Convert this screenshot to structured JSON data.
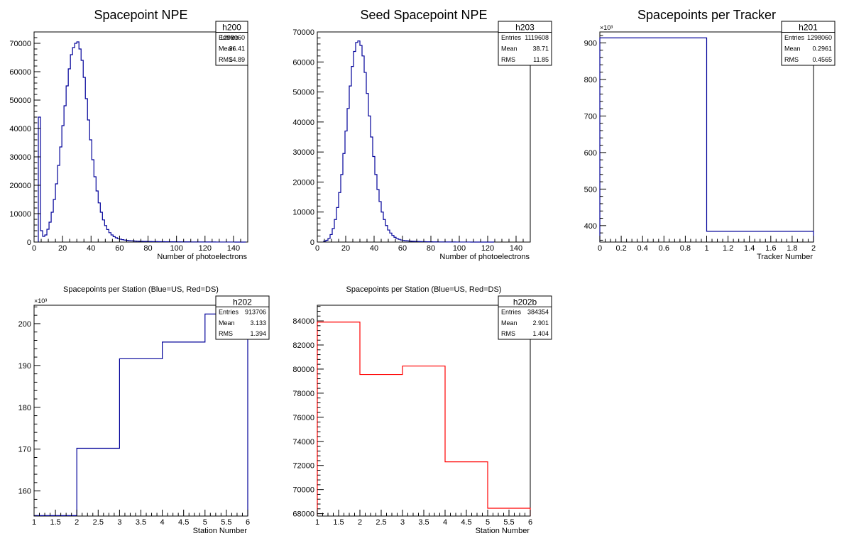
{
  "chart_data": [
    {
      "type": "histogram",
      "title": "Spacepoint NPE",
      "xlabel": "Number of photoelectrons",
      "ylabel": "",
      "xlim": [
        0,
        150
      ],
      "ylim": [
        0,
        74000
      ],
      "xticks": [
        0,
        20,
        40,
        60,
        80,
        100,
        120,
        140
      ],
      "yticks": [
        0,
        10000,
        20000,
        30000,
        40000,
        50000,
        60000,
        70000
      ],
      "color": "#000099",
      "stats": {
        "name": "h200",
        "rows": [
          [
            "Entries",
            "1298060"
          ],
          [
            "Mean",
            "36.41"
          ],
          [
            "RMS",
            "14.89"
          ]
        ]
      },
      "bin_edges_start": 3,
      "bin_width": 1.5,
      "values": [
        44000,
        4000,
        2000,
        2500,
        4500,
        7000,
        10500,
        15000,
        20500,
        27000,
        33500,
        41000,
        48000,
        55000,
        61000,
        66000,
        68500,
        70000,
        70500,
        68000,
        64000,
        58000,
        50500,
        43000,
        36000,
        29000,
        23000,
        18000,
        13800,
        10500,
        7800,
        5800,
        4400,
        3300,
        2500,
        1900,
        1500,
        1200,
        1000,
        850,
        700,
        600,
        500,
        450,
        400,
        350,
        300,
        280,
        250,
        230,
        210,
        200,
        180,
        170,
        160,
        150,
        140,
        130,
        120,
        115,
        110,
        100,
        95,
        90,
        85,
        80,
        75,
        70,
        65,
        60,
        55,
        50,
        50,
        45,
        45,
        40,
        40,
        35,
        35,
        30,
        30,
        25,
        25,
        20,
        20,
        20,
        18,
        16,
        14,
        12,
        10,
        10,
        8,
        8,
        6,
        6,
        5
      ]
    },
    {
      "type": "histogram",
      "title": "Seed Spacepoint NPE",
      "xlabel": "Number of photoelectrons",
      "ylabel": "",
      "xlim": [
        0,
        150
      ],
      "ylim": [
        0,
        70000
      ],
      "xticks": [
        0,
        20,
        40,
        60,
        80,
        100,
        120,
        140
      ],
      "yticks": [
        0,
        10000,
        20000,
        30000,
        40000,
        50000,
        60000,
        70000
      ],
      "color": "#000099",
      "stats": {
        "name": "h203",
        "rows": [
          [
            "Entries",
            "1119608"
          ],
          [
            "Mean",
            "38.71"
          ],
          [
            "RMS",
            "11.85"
          ]
        ]
      },
      "bin_edges_start": 4.5,
      "bin_width": 1.5,
      "values": [
        300,
        600,
        1200,
        2500,
        4500,
        7500,
        11500,
        16500,
        22500,
        29500,
        37000,
        44500,
        52000,
        58500,
        63500,
        66500,
        67000,
        65500,
        62000,
        56500,
        49500,
        42000,
        35000,
        28500,
        22500,
        17500,
        13500,
        10000,
        7500,
        5500,
        4000,
        3000,
        2200,
        1600,
        1200,
        900,
        700,
        550,
        450,
        380,
        320,
        270,
        230,
        200,
        170,
        150,
        130,
        115,
        100,
        90,
        80,
        70,
        60,
        55,
        50,
        45,
        40,
        35,
        30,
        28,
        25,
        22,
        20,
        18,
        16,
        14,
        12,
        10,
        9,
        8,
        7,
        6,
        5,
        5,
        4,
        4,
        3,
        3,
        2,
        2
      ]
    },
    {
      "type": "histogram",
      "title": "Spacepoints per Tracker",
      "xlabel": "Tracker Number",
      "ylabel": "",
      "xlim": [
        0,
        2
      ],
      "ylim": [
        355000,
        930000
      ],
      "xticks": [
        0,
        0.2,
        0.4,
        0.6,
        0.8,
        1,
        1.2,
        1.4,
        1.6,
        1.8,
        2
      ],
      "xtick_labels": [
        "0",
        "0.2",
        "0.4",
        "0.6",
        "0.8",
        "1",
        "1.2",
        "1.4",
        "1.6",
        "1.8",
        "2"
      ],
      "yticks": [
        400000,
        500000,
        600000,
        700000,
        800000,
        900000
      ],
      "ytick_labels": [
        "400",
        "500",
        "600",
        "700",
        "800",
        "900"
      ],
      "multiplier": "×10³",
      "color": "#000099",
      "stats": {
        "name": "h201",
        "rows": [
          [
            "Entries",
            "1298060"
          ],
          [
            "Mean",
            "0.2961"
          ],
          [
            "RMS",
            "0.4565"
          ]
        ]
      },
      "bin_edges_start": 0,
      "bin_width": 1,
      "values": [
        913706,
        384354
      ]
    },
    {
      "type": "histogram",
      "title": "Spacepoints per Station (Blue=US, Red=DS)",
      "xlabel": "Station Number",
      "ylabel": "",
      "xlim": [
        1,
        6
      ],
      "ylim": [
        154000,
        204400
      ],
      "xticks": [
        1,
        1.5,
        2,
        2.5,
        3,
        3.5,
        4,
        4.5,
        5,
        5.5,
        6
      ],
      "xtick_labels": [
        "1",
        "1.5",
        "2",
        "2.5",
        "3",
        "3.5",
        "4",
        "4.5",
        "5",
        "5.5",
        "6"
      ],
      "yticks": [
        160000,
        170000,
        180000,
        190000,
        200000
      ],
      "ytick_labels": [
        "160",
        "170",
        "180",
        "190",
        "200"
      ],
      "multiplier": "×10³",
      "color": "#000099",
      "stats": {
        "name": "h202",
        "rows": [
          [
            "Entries",
            "913706"
          ],
          [
            "Mean",
            "3.133"
          ],
          [
            "RMS",
            "1.394"
          ]
        ]
      },
      "bin_edges_start": 1,
      "bin_width": 1,
      "values": [
        154100,
        170200,
        191600,
        195600,
        202300
      ]
    },
    {
      "type": "histogram",
      "title": "Spacepoints per Station (Blue=US, Red=DS)",
      "xlabel": "Station Number",
      "ylabel": "",
      "xlim": [
        1,
        6
      ],
      "ylim": [
        67800,
        85300
      ],
      "xticks": [
        1,
        1.5,
        2,
        2.5,
        3,
        3.5,
        4,
        4.5,
        5,
        5.5,
        6
      ],
      "xtick_labels": [
        "1",
        "1.5",
        "2",
        "2.5",
        "3",
        "3.5",
        "4",
        "4.5",
        "5",
        "5.5",
        "6"
      ],
      "yticks": [
        68000,
        70000,
        72000,
        74000,
        76000,
        78000,
        80000,
        82000,
        84000
      ],
      "color": "#ff0000",
      "stats": {
        "name": "h202b",
        "rows": [
          [
            "Entries",
            "384354"
          ],
          [
            "Mean",
            "2.901"
          ],
          [
            "RMS",
            "1.404"
          ]
        ]
      },
      "bin_edges_start": 1,
      "bin_width": 1,
      "values": [
        83900,
        79550,
        80250,
        72300,
        68450
      ]
    }
  ]
}
